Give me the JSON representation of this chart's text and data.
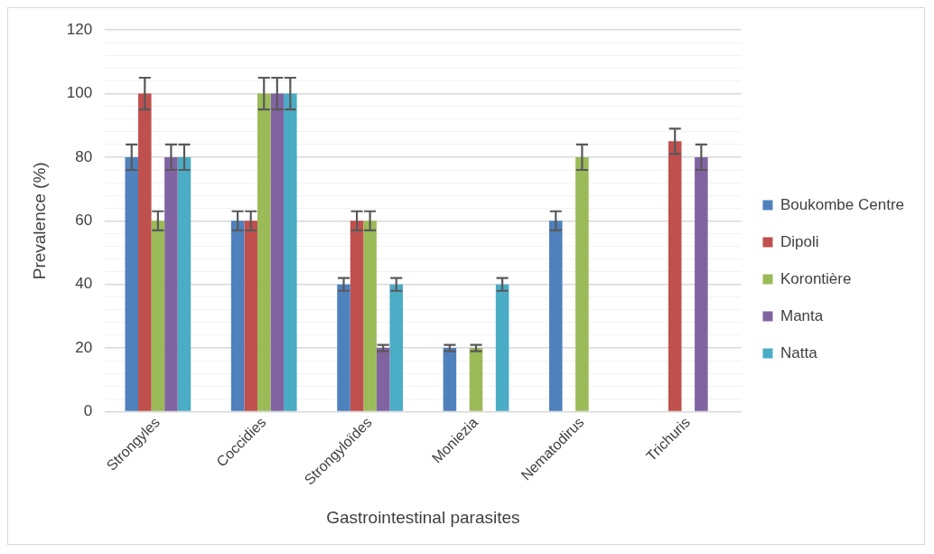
{
  "chart_data": {
    "type": "bar",
    "xlabel": "Gastrointestinal parasites",
    "ylabel": "Prevalence (%)",
    "categories": [
      "Strongyles",
      "Coccidies",
      "Strongyloïdes",
      "Moniezia",
      "Nematodirus",
      "Trichuris"
    ],
    "series": [
      {
        "name": "Boukombe Centre",
        "color": "#4f81bd",
        "values": [
          80,
          60,
          40,
          20,
          60,
          0
        ],
        "errors": [
          4,
          3,
          2,
          1,
          3,
          null
        ]
      },
      {
        "name": "Dipoli",
        "color": "#c0504d",
        "values": [
          100,
          60,
          60,
          0,
          0,
          85
        ],
        "errors": [
          5,
          3,
          3,
          null,
          null,
          4
        ]
      },
      {
        "name": "Korontière",
        "color": "#9bbb59",
        "values": [
          60,
          100,
          60,
          20,
          80,
          0
        ],
        "errors": [
          3,
          5,
          3,
          1,
          4,
          null
        ]
      },
      {
        "name": "Manta",
        "color": "#8064a2",
        "values": [
          80,
          100,
          20,
          0,
          0,
          80
        ],
        "errors": [
          4,
          5,
          1,
          null,
          null,
          4
        ]
      },
      {
        "name": "Natta",
        "color": "#4bacc6",
        "values": [
          80,
          100,
          40,
          40,
          0,
          0
        ],
        "errors": [
          4,
          5,
          2,
          2,
          null,
          null
        ]
      }
    ],
    "ylim": [
      0,
      120
    ],
    "yticks": [
      0,
      {
        "value": 4,
        "label": null
      },
      {
        "value": 8,
        "label": null
      },
      {
        "value": 12,
        "label": null
      },
      {
        "value": 16,
        "label": null
      },
      20,
      {
        "value": 24,
        "label": null
      },
      {
        "value": 28,
        "label": null
      },
      {
        "value": 32,
        "label": null
      },
      {
        "value": 36,
        "label": null
      },
      40,
      {
        "value": 44,
        "label": null
      },
      {
        "value": 48,
        "label": null
      },
      {
        "value": 52,
        "label": null
      },
      {
        "value": 56,
        "label": null
      },
      60,
      {
        "value": 64,
        "label": null
      },
      {
        "value": 68,
        "label": null
      },
      {
        "value": 72,
        "label": null
      },
      {
        "value": 76,
        "label": null
      },
      80,
      {
        "value": 84,
        "label": null
      },
      {
        "value": 88,
        "label": null
      },
      {
        "value": 92,
        "label": null
      },
      {
        "value": 96,
        "label": null
      },
      100,
      {
        "value": 104,
        "label": null
      },
      {
        "value": 108,
        "label": null
      },
      {
        "value": 112,
        "label": null
      },
      {
        "value": 116,
        "label": null
      },
      120
    ],
    "grid": "y",
    "legend": "right"
  }
}
